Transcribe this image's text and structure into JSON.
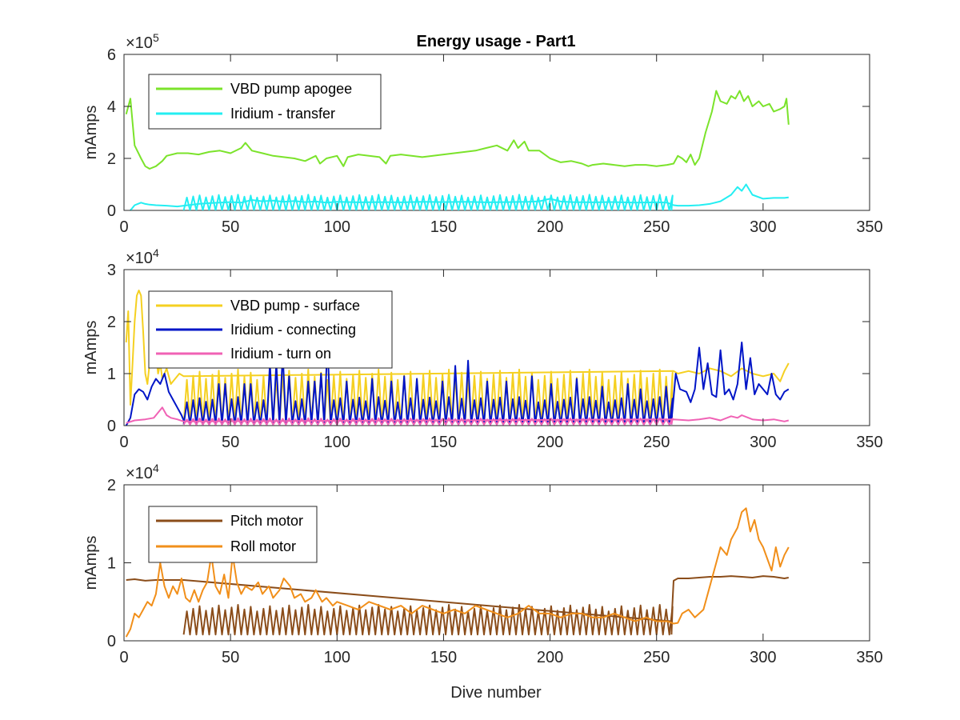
{
  "figure": {
    "title": "Energy usage - Part1",
    "xlabel": "Dive number",
    "axis_color": "#262626"
  },
  "chart_data": [
    {
      "type": "line",
      "title": "Energy usage - Part1",
      "xlabel": "",
      "ylabel": "mAmps",
      "xlim": [
        0,
        350
      ],
      "ylim": [
        0,
        600000
      ],
      "xticks": [
        0,
        50,
        100,
        150,
        200,
        250,
        300,
        350
      ],
      "yticks": [
        0,
        200000,
        400000,
        600000
      ],
      "ytick_labels": [
        "0",
        "2",
        "4",
        "6"
      ],
      "exponent_label": "×10",
      "exponent_power": "5",
      "grid": false,
      "legend_position": "top-left",
      "series": [
        {
          "name": "VBD pump apogee",
          "color": "#7be32b",
          "x": [
            1,
            3,
            5,
            8,
            10,
            12,
            15,
            18,
            20,
            25,
            30,
            35,
            40,
            45,
            50,
            55,
            57,
            60,
            65,
            70,
            75,
            80,
            85,
            90,
            92,
            95,
            100,
            103,
            105,
            110,
            115,
            120,
            123,
            125,
            130,
            135,
            140,
            145,
            150,
            155,
            160,
            165,
            170,
            175,
            180,
            183,
            185,
            188,
            190,
            195,
            200,
            205,
            210,
            215,
            218,
            220,
            225,
            230,
            235,
            240,
            245,
            250,
            255,
            258,
            260,
            262,
            264,
            266,
            268,
            270,
            273,
            276,
            278,
            280,
            283,
            285,
            287,
            289,
            291,
            293,
            295,
            298,
            300,
            303,
            305,
            308,
            310,
            311,
            312
          ],
          "y": [
            370000,
            430000,
            250000,
            200000,
            170000,
            160000,
            170000,
            190000,
            210000,
            220000,
            220000,
            215000,
            225000,
            230000,
            220000,
            240000,
            260000,
            230000,
            220000,
            210000,
            205000,
            200000,
            190000,
            210000,
            180000,
            200000,
            210000,
            170000,
            205000,
            215000,
            210000,
            205000,
            180000,
            210000,
            215000,
            210000,
            205000,
            210000,
            215000,
            220000,
            225000,
            230000,
            240000,
            250000,
            230000,
            270000,
            240000,
            265000,
            230000,
            230000,
            200000,
            185000,
            190000,
            180000,
            170000,
            175000,
            180000,
            175000,
            170000,
            175000,
            175000,
            170000,
            175000,
            180000,
            210000,
            200000,
            185000,
            215000,
            175000,
            200000,
            300000,
            380000,
            460000,
            420000,
            410000,
            440000,
            430000,
            460000,
            420000,
            440000,
            400000,
            420000,
            400000,
            410000,
            380000,
            390000,
            400000,
            430000,
            330000
          ]
        },
        {
          "name": "Iridium - transfer",
          "color": "#24eef2",
          "x": [
            3,
            5,
            8,
            10,
            12,
            15,
            20,
            25,
            30,
            35,
            40,
            45,
            50,
            55,
            60,
            65,
            70,
            75,
            80,
            85,
            90,
            95,
            100,
            110,
            120,
            130,
            140,
            150,
            160,
            170,
            180,
            190,
            195,
            200,
            205,
            210,
            220,
            230,
            240,
            250,
            255,
            258,
            260,
            265,
            270,
            275,
            280,
            285,
            288,
            290,
            292,
            295,
            300,
            305,
            310,
            312
          ],
          "y": [
            0,
            20000,
            30000,
            25000,
            22000,
            20000,
            18000,
            15000,
            20000,
            25000,
            28000,
            30000,
            32000,
            30000,
            40000,
            35000,
            38000,
            33000,
            36000,
            32000,
            34000,
            30000,
            33000,
            31000,
            32000,
            31000,
            33000,
            32000,
            33000,
            31000,
            32000,
            33000,
            35000,
            45000,
            34000,
            32000,
            31000,
            32000,
            30000,
            31000,
            30000,
            20000,
            18000,
            18000,
            20000,
            25000,
            35000,
            60000,
            90000,
            75000,
            100000,
            60000,
            45000,
            48000,
            48000,
            50000
          ]
        },
        {
          "name": "",
          "color": "#24eef2",
          "pulse": true,
          "x_start": 28,
          "x_end": 257,
          "period": 3.0,
          "base": 0,
          "amp": 55000
        }
      ]
    },
    {
      "type": "line",
      "title": "",
      "xlabel": "",
      "ylabel": "mAmps",
      "xlim": [
        0,
        350
      ],
      "ylim": [
        0,
        30000
      ],
      "xticks": [
        0,
        50,
        100,
        150,
        200,
        250,
        300,
        350
      ],
      "yticks": [
        0,
        10000,
        20000,
        30000
      ],
      "ytick_labels": [
        "0",
        "1",
        "2",
        "3"
      ],
      "exponent_label": "×10",
      "exponent_power": "4",
      "grid": false,
      "legend_position": "top-left",
      "series": [
        {
          "name": "VBD pump - surface",
          "color": "#f5d021",
          "x": [
            1,
            2,
            3,
            4,
            5,
            6,
            7,
            8,
            9,
            10,
            11,
            12,
            13,
            14,
            15,
            16,
            17,
            18,
            19,
            20,
            22,
            24,
            26,
            28,
            258,
            260,
            265,
            270,
            275,
            280,
            285,
            290,
            295,
            300,
            305,
            308,
            310,
            312
          ],
          "y": [
            16000,
            22000,
            4000,
            12000,
            20000,
            25000,
            26000,
            25000,
            18000,
            10000,
            8000,
            12000,
            18000,
            22000,
            14000,
            10000,
            12000,
            9000,
            10000,
            11000,
            8000,
            9000,
            10000,
            9500,
            10500,
            10000,
            10500,
            10000,
            11000,
            10500,
            9500,
            11000,
            10000,
            9500,
            10000,
            8500,
            10500,
            12000
          ]
        },
        {
          "name": "",
          "color": "#f5d021",
          "pulse": true,
          "x_start": 28,
          "x_end": 257,
          "period": 3.0,
          "base": 400,
          "amp": 9800
        },
        {
          "name": "Iridium - connecting",
          "color": "#0015c7",
          "x": [
            1,
            3,
            5,
            7,
            9,
            11,
            13,
            15,
            17,
            19,
            21,
            23,
            25,
            27,
            28
          ],
          "y": [
            0,
            1500,
            6000,
            7000,
            6500,
            5000,
            7500,
            9000,
            8000,
            10000,
            6500,
            5000,
            3500,
            2000,
            1000
          ]
        },
        {
          "name": "",
          "color": "#0015c7",
          "pulse": true,
          "x_start": 28,
          "x_end": 257,
          "period": 3.0,
          "base": 200,
          "amp": 5000,
          "peaks": [
            [
              46,
              8000
            ],
            [
              58,
              8000
            ],
            [
              70,
              12000
            ],
            [
              74,
              14000
            ],
            [
              78,
              9500
            ],
            [
              88,
              8500
            ],
            [
              92,
              10000
            ],
            [
              96,
              16000
            ],
            [
              105,
              8500
            ],
            [
              116,
              9000
            ],
            [
              125,
              8500
            ],
            [
              131,
              9500
            ],
            [
              137,
              9000
            ],
            [
              149,
              8500
            ],
            [
              155,
              11500
            ],
            [
              161,
              12500
            ],
            [
              170,
              8500
            ],
            [
              180,
              8500
            ],
            [
              191,
              9500
            ],
            [
              200,
              8000
            ],
            [
              212,
              9000
            ],
            [
              224,
              7500
            ],
            [
              236,
              8000
            ],
            [
              242,
              7000
            ],
            [
              254,
              7500
            ]
          ]
        },
        {
          "name": "",
          "color": "#0015c7",
          "x": [
            257,
            259,
            261,
            264,
            266,
            268,
            270,
            272,
            274,
            276,
            278,
            280,
            282,
            284,
            286,
            288,
            290,
            292,
            294,
            296,
            298,
            300,
            302,
            304,
            306,
            308,
            310,
            312
          ],
          "y": [
            1000,
            10000,
            7000,
            6500,
            4500,
            7000,
            15000,
            7000,
            12000,
            6000,
            5500,
            14500,
            6000,
            7000,
            5000,
            8000,
            16000,
            7000,
            13000,
            6000,
            8000,
            7000,
            6000,
            10000,
            6000,
            5000,
            6500,
            7000
          ]
        },
        {
          "name": "Iridium - turn on",
          "color": "#f062b5",
          "x": [
            1,
            5,
            10,
            14,
            16,
            18,
            20,
            22,
            25,
            28,
            258,
            265,
            270,
            275,
            280,
            285,
            288,
            290,
            295,
            300,
            305,
            310,
            312
          ],
          "y": [
            500,
            1000,
            1200,
            1500,
            2500,
            3500,
            2000,
            1500,
            1200,
            800,
            1200,
            1000,
            1200,
            1500,
            1000,
            1800,
            1500,
            2000,
            1200,
            1000,
            1200,
            800,
            1000
          ]
        },
        {
          "name": "",
          "color": "#f062b5",
          "pulse": true,
          "x_start": 28,
          "x_end": 257,
          "period": 3.0,
          "base": 200,
          "amp": 1300
        }
      ]
    },
    {
      "type": "line",
      "title": "",
      "xlabel": "Dive number",
      "ylabel": "mAmps",
      "xlim": [
        0,
        350
      ],
      "ylim": [
        0,
        20000
      ],
      "xticks": [
        0,
        50,
        100,
        150,
        200,
        250,
        300,
        350
      ],
      "yticks": [
        0,
        10000,
        20000
      ],
      "ytick_labels": [
        "0",
        "1",
        "2"
      ],
      "exponent_label": "×10",
      "exponent_power": "4",
      "grid": false,
      "legend_position": "top-left",
      "series": [
        {
          "name": "Pitch motor",
          "color": "#8b4d1a",
          "x": [
            1,
            5,
            10,
            15,
            20,
            25,
            28,
            257,
            258,
            260,
            265,
            270,
            275,
            280,
            285,
            290,
            295,
            300,
            305,
            310,
            312
          ],
          "y": [
            7800,
            7900,
            7700,
            7800,
            7800,
            7800,
            7800,
            2500,
            7700,
            8000,
            8000,
            8100,
            8200,
            8200,
            8300,
            8200,
            8100,
            8300,
            8200,
            8000,
            8100
          ]
        },
        {
          "name": "",
          "color": "#8b4d1a",
          "pulse": true,
          "x_start": 28,
          "x_end": 257,
          "period": 3.0,
          "base": 800,
          "amp": 4200
        },
        {
          "name": "Roll motor",
          "color": "#f18f1a",
          "x": [
            1,
            3,
            5,
            7,
            9,
            11,
            13,
            15,
            17,
            19,
            21,
            23,
            25,
            27,
            29,
            31,
            33,
            35,
            37,
            39,
            41,
            43,
            45,
            47,
            49,
            51,
            53,
            55,
            57,
            60,
            63,
            65,
            68,
            70,
            73,
            75,
            78,
            80,
            83,
            85,
            88,
            90,
            93,
            95,
            98,
            100,
            105,
            110,
            115,
            120,
            125,
            130,
            135,
            140,
            145,
            150,
            155,
            160,
            165,
            170,
            175,
            180,
            185,
            190,
            195,
            200,
            205,
            210,
            215,
            220,
            225,
            230,
            235,
            240,
            245,
            250,
            255,
            258,
            260,
            262,
            265,
            268,
            270,
            272,
            275,
            278,
            280,
            283,
            285,
            288,
            290,
            292,
            294,
            296,
            298,
            300,
            302,
            304,
            306,
            308,
            310,
            312
          ],
          "y": [
            500,
            1500,
            3500,
            3000,
            4000,
            5000,
            4500,
            6000,
            10000,
            7000,
            5500,
            7000,
            6000,
            8000,
            5500,
            5000,
            6500,
            5000,
            6500,
            7500,
            11000,
            7000,
            6000,
            8500,
            5500,
            11000,
            7500,
            6000,
            7000,
            6500,
            7500,
            6000,
            7000,
            5500,
            6500,
            8000,
            7000,
            5500,
            6000,
            5000,
            5500,
            6500,
            5000,
            5500,
            4500,
            5000,
            4500,
            4000,
            5000,
            4500,
            4000,
            4500,
            3500,
            4500,
            4000,
            3500,
            4000,
            3500,
            4500,
            4000,
            3500,
            3000,
            3500,
            4500,
            3500,
            3500,
            3000,
            3500,
            3500,
            3000,
            3000,
            3500,
            3000,
            2500,
            3000,
            2500,
            2500,
            2200,
            2300,
            3500,
            4000,
            3000,
            3500,
            4000,
            7000,
            10000,
            12000,
            11000,
            13000,
            14500,
            16500,
            17000,
            14000,
            15500,
            13000,
            12000,
            10500,
            9000,
            12000,
            9500,
            11000,
            12000
          ]
        }
      ]
    }
  ]
}
